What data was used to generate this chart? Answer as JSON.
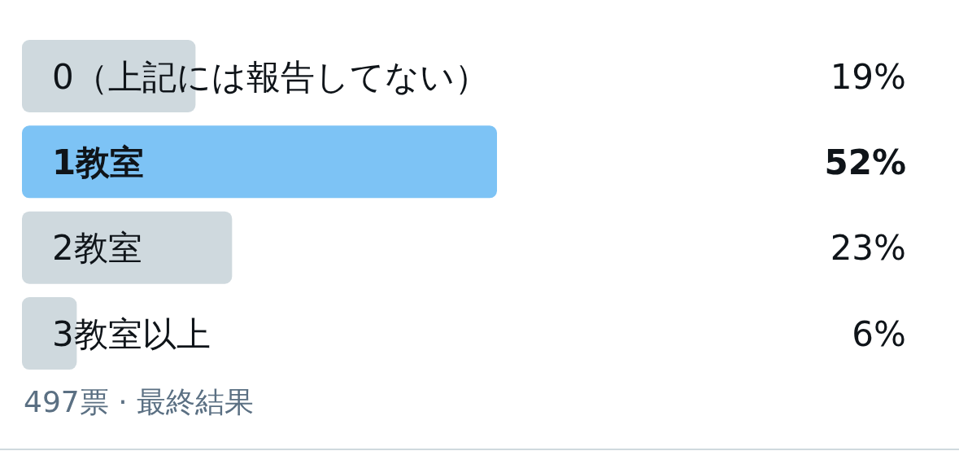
{
  "chart_data": {
    "type": "bar",
    "orientation": "horizontal",
    "categories": [
      "0（上記には報告してない）",
      "1教室",
      "2教室",
      "3教室以上"
    ],
    "values": [
      19,
      52,
      23,
      6
    ],
    "colors": [
      "#cfd9de",
      "#7dc3f5",
      "#cfd9de",
      "#cfd9de"
    ],
    "value_labels": [
      "19%",
      "52%",
      "23%",
      "6%"
    ],
    "annotations": [
      "497票 · 最終結果"
    ]
  }
}
